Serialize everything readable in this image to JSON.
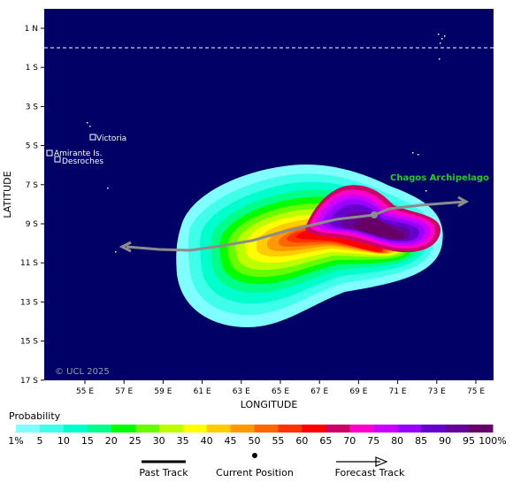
{
  "map": {
    "x_axis_title": "LONGITUDE",
    "y_axis_title": "LATITUDE",
    "lon_ticks": [
      "55 E",
      "57 E",
      "59 E",
      "61 E",
      "63 E",
      "65 E",
      "67 E",
      "69 E",
      "71 E",
      "73 E",
      "75 E"
    ],
    "lat_ticks": [
      "1 N",
      "1 S",
      "3 S",
      "5 S",
      "7 S",
      "9 S",
      "11 S",
      "13 S",
      "15 S",
      "17 S"
    ],
    "places": {
      "victoria": "Victoria",
      "amirante": "Amirante Is.",
      "desroches": "Desroches",
      "chagos": "Chagos Archipelago"
    },
    "copyright": "© UCL 2025",
    "colors": {
      "ocean": "#000066",
      "chagos_label": "#22cc22",
      "track": "#8c8c8c"
    }
  },
  "legend": {
    "title": "Probability",
    "bins": [
      "1%",
      "5",
      "10",
      "15",
      "20",
      "25",
      "30",
      "35",
      "40",
      "45",
      "50",
      "55",
      "60",
      "65",
      "70",
      "75",
      "80",
      "85",
      "90",
      "95",
      "100%"
    ],
    "colors": [
      "#7fffff",
      "#3fffea",
      "#00ffcc",
      "#00ff88",
      "#00ff00",
      "#66ff00",
      "#bbff00",
      "#ffff00",
      "#ffcc00",
      "#ff9900",
      "#ff6600",
      "#ff3300",
      "#ff0000",
      "#cc0066",
      "#ff00cc",
      "#cc00ff",
      "#9900ff",
      "#6600cc",
      "#660099",
      "#660066"
    ],
    "past_track": "Past Track",
    "current_position": "Current Position",
    "forecast_track": "Forecast Track"
  }
}
